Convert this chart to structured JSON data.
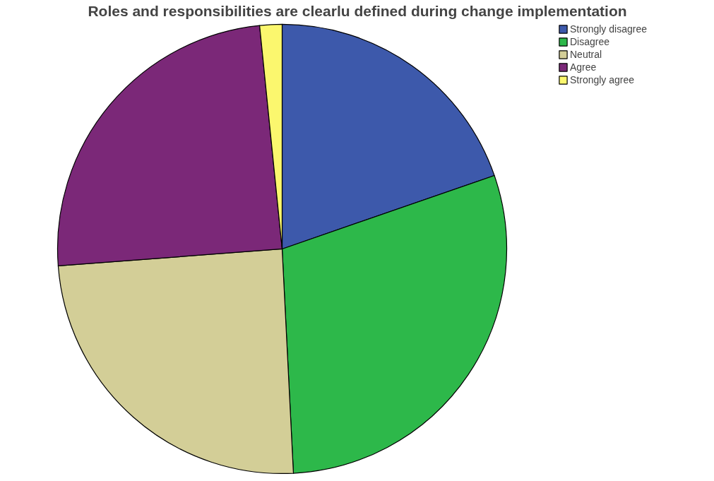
{
  "chart_data": {
    "type": "pie",
    "title": "Roles and responsibilities are clearlu defined during change implementation",
    "categories": [
      "Strongly disagree",
      "Disagree",
      "Neutral",
      "Agree",
      "Strongly agree"
    ],
    "values": [
      19.7,
      29.5,
      24.6,
      24.6,
      1.6
    ],
    "colors": [
      "#3d59ab",
      "#2db84a",
      "#d3ce97",
      "#7b2878",
      "#fbf76e"
    ],
    "legend": "top right"
  }
}
